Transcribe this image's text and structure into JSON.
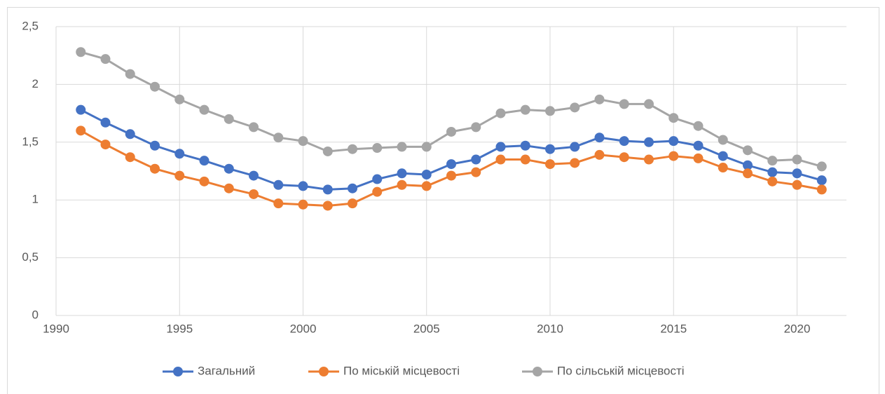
{
  "chart_data": {
    "type": "line",
    "x": [
      1991,
      1992,
      1993,
      1994,
      1995,
      1996,
      1997,
      1998,
      1999,
      2000,
      2001,
      2002,
      2003,
      2004,
      2005,
      2006,
      2007,
      2008,
      2009,
      2010,
      2011,
      2012,
      2013,
      2014,
      2015,
      2016,
      2017,
      2018,
      2019,
      2020,
      2021
    ],
    "series": [
      {
        "name": "Загальний",
        "color": "#4472c4",
        "values": [
          1.78,
          1.67,
          1.57,
          1.47,
          1.4,
          1.34,
          1.27,
          1.21,
          1.13,
          1.12,
          1.09,
          1.1,
          1.18,
          1.23,
          1.22,
          1.31,
          1.35,
          1.46,
          1.47,
          1.44,
          1.46,
          1.54,
          1.51,
          1.5,
          1.51,
          1.47,
          1.38,
          1.3,
          1.24,
          1.23,
          1.17
        ]
      },
      {
        "name": "По міській місцевості",
        "color": "#ed7d31",
        "values": [
          1.6,
          1.48,
          1.37,
          1.27,
          1.21,
          1.16,
          1.1,
          1.05,
          0.97,
          0.96,
          0.95,
          0.97,
          1.07,
          1.13,
          1.12,
          1.21,
          1.24,
          1.35,
          1.35,
          1.31,
          1.32,
          1.39,
          1.37,
          1.35,
          1.38,
          1.36,
          1.28,
          1.23,
          1.16,
          1.13,
          1.09
        ]
      },
      {
        "name": "По сільській місцевості",
        "color": "#a5a5a5",
        "values": [
          2.28,
          2.22,
          2.09,
          1.98,
          1.87,
          1.78,
          1.7,
          1.63,
          1.54,
          1.51,
          1.42,
          1.44,
          1.45,
          1.46,
          1.46,
          1.59,
          1.63,
          1.75,
          1.78,
          1.77,
          1.8,
          1.87,
          1.83,
          1.83,
          1.71,
          1.64,
          1.52,
          1.43,
          1.34,
          1.35,
          1.29
        ]
      }
    ],
    "xlim": [
      1990,
      2022
    ],
    "xticks": [
      1990,
      1995,
      2000,
      2005,
      2010,
      2015,
      2020
    ],
    "ylim": [
      0,
      2.5
    ],
    "yticks": [
      0,
      {
        "value": 0.5,
        "label": "0,5"
      },
      1,
      {
        "value": 1.5,
        "label": "1,5"
      },
      2,
      {
        "value": 2.5,
        "label": "2,5"
      }
    ],
    "grid": true,
    "legend": "bottom"
  }
}
